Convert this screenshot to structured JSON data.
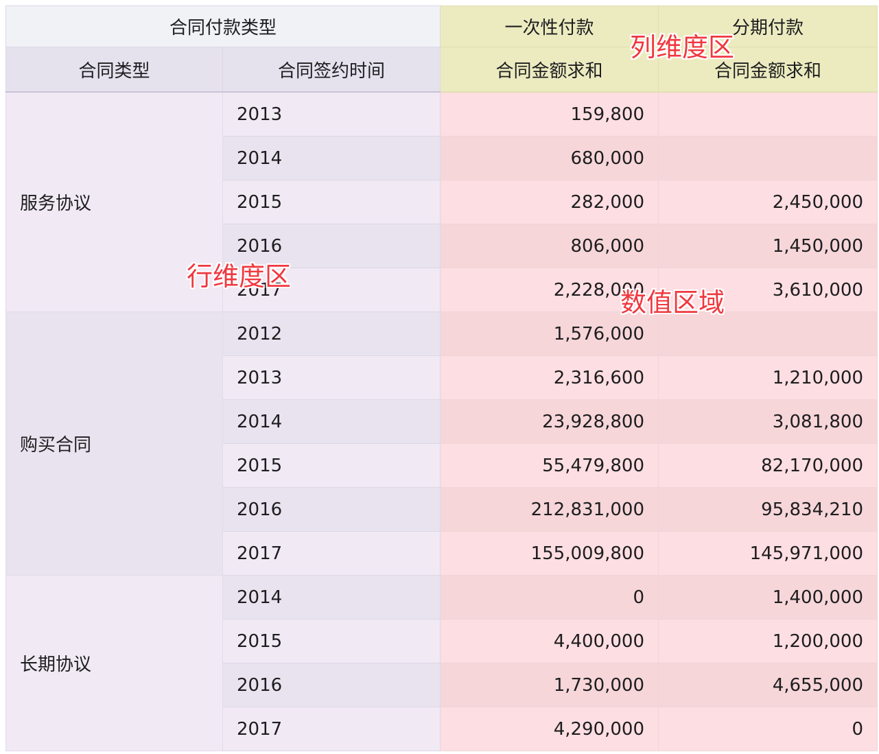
{
  "header": {
    "corner_label": "合同付款类型",
    "row_dims": [
      "合同类型",
      "合同签约时间"
    ],
    "payment_types": [
      "一次性付款",
      "分期付款"
    ],
    "measure_labels": [
      "合同金额求和",
      "合同金额求和"
    ]
  },
  "groups": [
    {
      "type": "服务协议",
      "rows": [
        {
          "year": "2013",
          "v1": "159,800",
          "v2": ""
        },
        {
          "year": "2014",
          "v1": "680,000",
          "v2": ""
        },
        {
          "year": "2015",
          "v1": "282,000",
          "v2": "2,450,000"
        },
        {
          "year": "2016",
          "v1": "806,000",
          "v2": "1,450,000"
        },
        {
          "year": "2017",
          "v1": "2,228,000",
          "v2": "3,610,000"
        }
      ]
    },
    {
      "type": "购买合同",
      "rows": [
        {
          "year": "2012",
          "v1": "1,576,000",
          "v2": ""
        },
        {
          "year": "2013",
          "v1": "2,316,600",
          "v2": "1,210,000"
        },
        {
          "year": "2014",
          "v1": "23,928,800",
          "v2": "3,081,800"
        },
        {
          "year": "2015",
          "v1": "55,479,800",
          "v2": "82,170,000"
        },
        {
          "year": "2016",
          "v1": "212,831,000",
          "v2": "95,834,210"
        },
        {
          "year": "2017",
          "v1": "155,009,800",
          "v2": "145,971,000"
        }
      ]
    },
    {
      "type": "长期协议",
      "rows": [
        {
          "year": "2014",
          "v1": "0",
          "v2": "1,400,000"
        },
        {
          "year": "2015",
          "v1": "4,400,000",
          "v2": "1,200,000"
        },
        {
          "year": "2016",
          "v1": "1,730,000",
          "v2": "4,655,000"
        },
        {
          "year": "2017",
          "v1": "4,290,000",
          "v2": "0"
        }
      ]
    }
  ],
  "annotations": {
    "column_dimension_area": "列维度区",
    "row_dimension_area": "行维度区",
    "value_area": "数值区域"
  },
  "colors": {
    "annotation_text": "#f0383f",
    "column_header_bg": "#ecebc0",
    "value_area_bg": "#fddee2",
    "row_area_bg": "#f1e9f4"
  }
}
